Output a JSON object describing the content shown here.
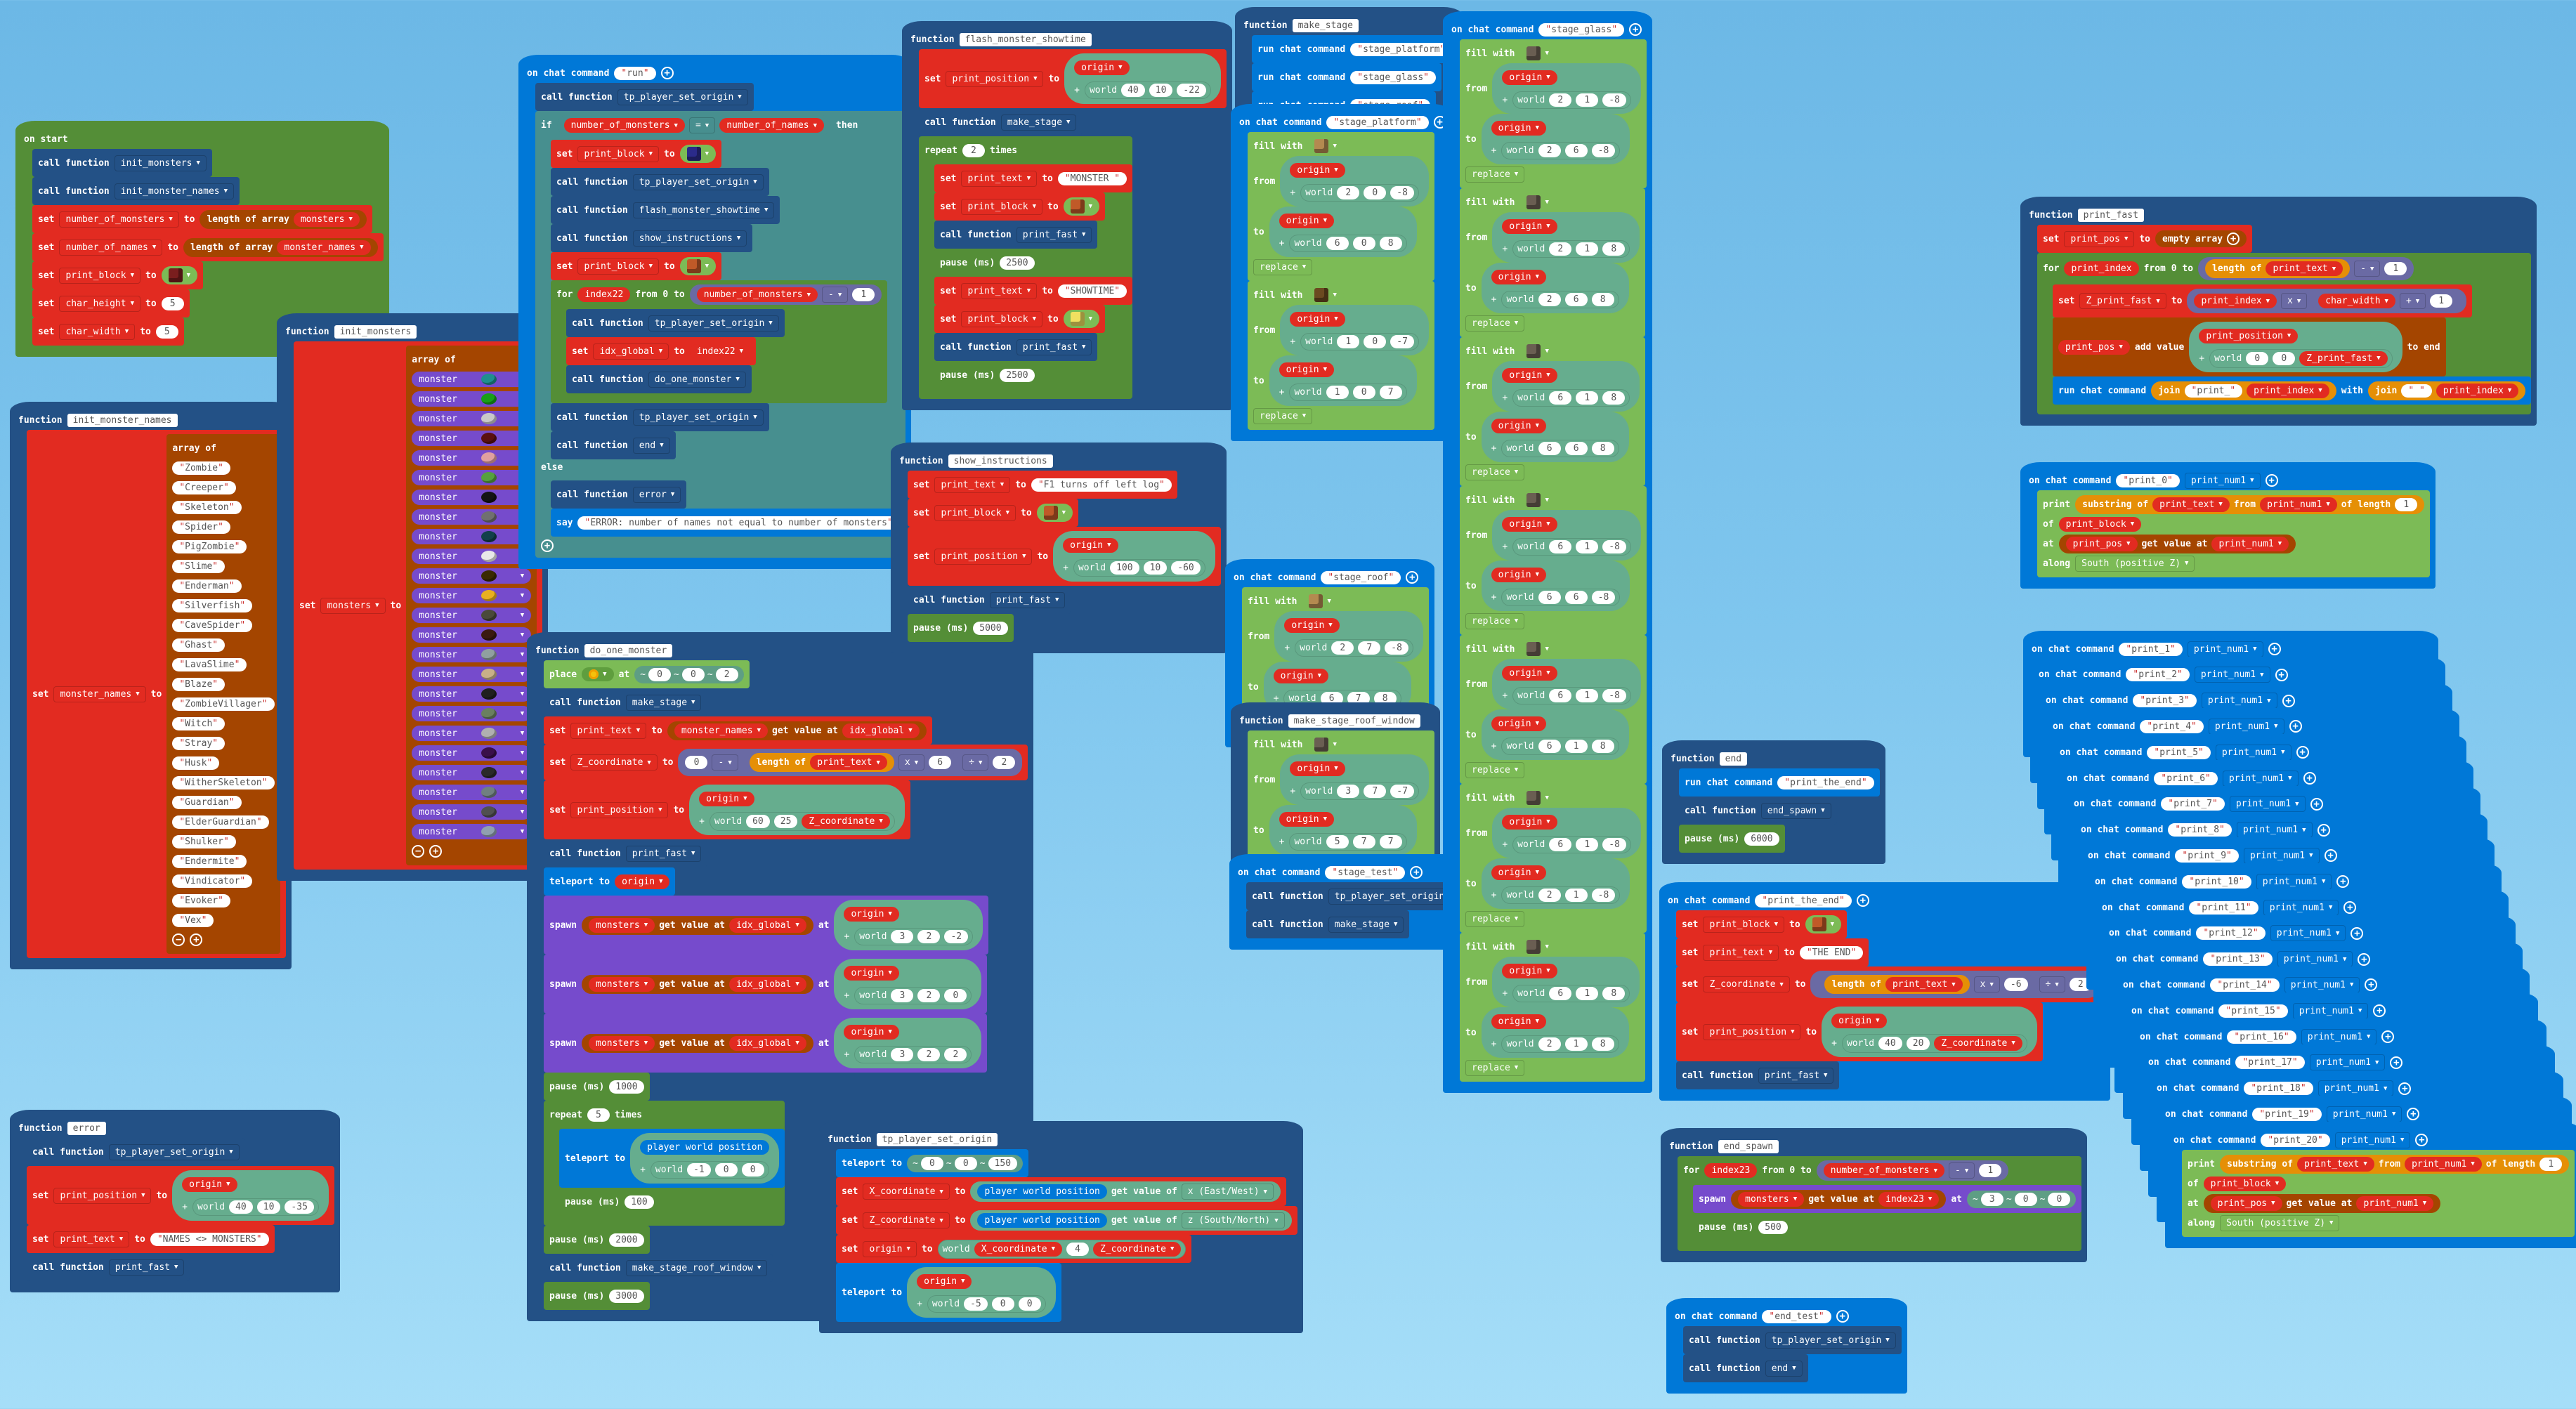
{
  "workspace": {
    "background_top": "#6cb8e6",
    "background_bottom": "#a6def8",
    "colors": {
      "function": "#235186",
      "event": "#0078d7",
      "variables": "#e22b21",
      "arrays": "#a44500",
      "loops": "#548e37",
      "logic": "#478f8f",
      "math": "#6a6aa4",
      "text": "#e58f06",
      "blocks": "#7cbb56",
      "mobs": "#764bcc",
      "positions": "#66ad8e"
    }
  },
  "scripts": {
    "on_start": {
      "header": "on start",
      "calls": [
        "init_monsters",
        "init_monster_names"
      ],
      "call_label": "call function",
      "set_label": "set",
      "to_label": "to",
      "length_of_array": "length of array",
      "sets": [
        {
          "var": "number_of_monsters",
          "array": "monsters"
        },
        {
          "var": "number_of_names",
          "array": "monster_names"
        }
      ],
      "print_block_var": "print_block",
      "print_block_item": "red-block",
      "char_height": {
        "var": "char_height",
        "value": "5"
      },
      "char_width": {
        "var": "char_width",
        "value": "5"
      }
    },
    "init_monster_names": {
      "keyword": "function",
      "name": "init_monster_names",
      "set_var": "monster_names",
      "array_of": "array of",
      "names": [
        "Zombie",
        "Creeper",
        "Skeleton",
        "Spider",
        "PigZombie",
        "Slime",
        "Enderman",
        "Silverfish",
        "CaveSpider",
        "Ghast",
        "LavaSlime",
        "Blaze",
        "ZombieVillager",
        "Witch",
        "Stray",
        "Husk",
        "WitherSkeleton",
        "Guardian",
        "ElderGuardian",
        "Shulker",
        "Endermite",
        "Vindicator",
        "Evoker",
        "Vex"
      ]
    },
    "init_monsters": {
      "keyword": "function",
      "name": "init_monsters",
      "set_var": "monsters",
      "array_of": "array of",
      "item_label": "monster",
      "egg_colors": [
        "#1f8f8f",
        "#18a018",
        "#c8c8c8",
        "#5a1010",
        "#e0a0a0",
        "#56a040",
        "#141414",
        "#707070",
        "#12404a",
        "#e8e8e8",
        "#3a2a00",
        "#e8b020",
        "#4a4a3a",
        "#3a1a10",
        "#90a0a0",
        "#c8b088",
        "#202020",
        "#6a8060",
        "#b0b0b0",
        "#3a104a",
        "#2a2a2a",
        "#708080",
        "#505050",
        "#90a0b0"
      ]
    },
    "error": {
      "keyword": "function",
      "name": "error",
      "call1": "tp_player_set_origin",
      "pos_var": "print_position",
      "origin": "origin",
      "world": "world",
      "offset": [
        "40",
        "10",
        "-35"
      ],
      "text_var": "print_text",
      "text": "NAMES <> MONSTERS",
      "call2": "print_fast"
    },
    "run": {
      "header": "on chat command",
      "command": "run",
      "call_tp": "tp_player_set_origin",
      "if": "if",
      "then": "then",
      "else": "else",
      "cond_left": "number_of_monsters",
      "cond_op": "=",
      "cond_right": "number_of_names",
      "print_block_var": "print_block",
      "call_flash": "flash_monster_showtime",
      "call_instructions": "show_instructions",
      "for": "for",
      "loop_var": "index22",
      "from_to": "from 0 to",
      "limit_var": "number_of_monsters",
      "minus_op": "-",
      "minus_val": "1",
      "do": "do",
      "idx_var": "idx_global",
      "call_one": "do_one_monster",
      "call_end": "end",
      "call_error": "error",
      "say": "say",
      "error_text": "ERROR: number of names not equal to number of monsters"
    },
    "do_one_monster": {
      "keyword": "function",
      "name": "do_one_monster",
      "place": "place",
      "at": "at",
      "place_coords": [
        "0",
        "0",
        "2"
      ],
      "call_stage": "make_stage",
      "text_var": "print_text",
      "names_var": "monster_names",
      "get_value_at": "get value at",
      "idx_var": "idx_global",
      "z_var": "Z_coordinate",
      "z_expr": {
        "zero": "0",
        "minus": "-",
        "length_of": "length of",
        "mul": "x",
        "mul_val": "6",
        "div": "÷",
        "div_val": "2"
      },
      "pos_var": "print_position",
      "pos_offset": [
        "60",
        "25"
      ],
      "call_print": "print_fast",
      "teleport_to": "teleport to",
      "spawn": "spawn",
      "monsters_var": "monsters",
      "spawn_offsets": [
        [
          "3",
          "2",
          "-2"
        ],
        [
          "3",
          "2",
          "0"
        ],
        [
          "3",
          "2",
          "2"
        ]
      ],
      "pause1": "1000",
      "repeat": "repeat",
      "repeat_times": "5",
      "times": "times",
      "player_world_position": "player world position",
      "tp_offset": [
        "-1",
        "0",
        "0"
      ],
      "pause_inner": "100",
      "pause2": "2000",
      "call_roof": "make_stage_roof_window",
      "pause3": "3000",
      "pause_label": "pause (ms)"
    },
    "tp_player_set_origin": {
      "keyword": "function",
      "name": "tp_player_set_origin",
      "tp_coords": [
        "0",
        "0",
        "150"
      ],
      "x_var": "X_coordinate",
      "z_var": "Z_coordinate",
      "get_value_of": "get value of",
      "x_axis": "x (East/West)",
      "z_axis": "z (South/North)",
      "origin_var": "origin",
      "origin_y": "4",
      "tp_offset": [
        "-5",
        "0",
        "0"
      ]
    },
    "flash_monster_showtime": {
      "keyword": "function",
      "name": "flash_monster_showtime",
      "pos_offset": [
        "40",
        "10",
        "-22"
      ],
      "call_stage": "make_stage",
      "repeat_times": "2",
      "text1": "MONSTER ",
      "text2": "SHOWTIME",
      "pause": "2500",
      "call_print": "print_fast"
    },
    "show_instructions": {
      "keyword": "function",
      "name": "show_instructions",
      "text": "F1 turns off left log",
      "pos_offset": [
        "100",
        "10",
        "-60"
      ],
      "call_print": "print_fast",
      "pause": "5000"
    },
    "make_stage": {
      "keyword": "function",
      "name": "make_stage",
      "run_chat_command": "run chat command",
      "commands": [
        "stage_platform",
        "stage_glass",
        "stage_roof"
      ]
    },
    "stage_platform": {
      "command": "stage_platform",
      "fills": [
        {
          "block": "planks",
          "from": [
            "2",
            "0",
            "-8"
          ],
          "to": [
            "6",
            "0",
            "8"
          ],
          "mode": "replace"
        },
        {
          "block": "torch",
          "from": [
            "1",
            "0",
            "-7"
          ],
          "to": [
            "1",
            "0",
            "7"
          ],
          "mode": "replace"
        }
      ]
    },
    "stage_roof": {
      "command": "stage_roof",
      "fills": [
        {
          "block": "planks",
          "from": [
            "2",
            "7",
            "-8"
          ],
          "to": [
            "6",
            "7",
            "8"
          ],
          "mode": "replace"
        }
      ]
    },
    "make_stage_roof_window": {
      "keyword": "function",
      "name": "make_stage_roof_window",
      "fills": [
        {
          "block": "glass",
          "from": [
            "3",
            "7",
            "-7"
          ],
          "to": [
            "5",
            "7",
            "7"
          ],
          "mode": "replace"
        }
      ]
    },
    "stage_test": {
      "command": "stage_test",
      "calls": [
        "tp_player_set_origin",
        "make_stage"
      ]
    },
    "stage_glass": {
      "command": "stage_glass",
      "fills": [
        {
          "block": "glass",
          "from": [
            "2",
            "1",
            "-8"
          ],
          "to": [
            "2",
            "6",
            "-8"
          ],
          "mode": "replace"
        },
        {
          "block": "glass",
          "from": [
            "2",
            "1",
            "8"
          ],
          "to": [
            "2",
            "6",
            "8"
          ],
          "mode": "replace"
        },
        {
          "block": "glass",
          "from": [
            "6",
            "1",
            "8"
          ],
          "to": [
            "6",
            "6",
            "8"
          ],
          "mode": "replace"
        },
        {
          "block": "glass",
          "from": [
            "6",
            "1",
            "-8"
          ],
          "to": [
            "6",
            "6",
            "-8"
          ],
          "mode": "replace"
        },
        {
          "block": "glass",
          "from": [
            "6",
            "1",
            "-8"
          ],
          "to": [
            "6",
            "1",
            "8"
          ],
          "mode": "replace"
        },
        {
          "block": "glass",
          "from": [
            "6",
            "1",
            "-8"
          ],
          "to": [
            "2",
            "1",
            "-8"
          ],
          "mode": "replace"
        },
        {
          "block": "glass",
          "from": [
            "6",
            "1",
            "8"
          ],
          "to": [
            "2",
            "1",
            "8"
          ],
          "mode": "replace"
        }
      ]
    },
    "end": {
      "keyword": "function",
      "name": "end",
      "run_command": "print_the_end",
      "call": "end_spawn",
      "pause": "6000"
    },
    "print_the_end": {
      "command": "print_the_end",
      "text": "THE END",
      "z_expr": {
        "length_of": "length of",
        "mul": "x",
        "mul_val": "-6",
        "div": "÷",
        "div_val": "2"
      },
      "pos_offset": [
        "40",
        "20"
      ],
      "call_print": "print_fast"
    },
    "end_spawn": {
      "keyword": "function",
      "name": "end_spawn",
      "loop_var": "index23",
      "limit_var": "number_of_monsters",
      "minus_val": "1",
      "spawn_coords": [
        "3",
        "0",
        "0"
      ],
      "pause": "500"
    },
    "end_test": {
      "command": "end_test",
      "calls": [
        "tp_player_set_origin",
        "end"
      ]
    },
    "print_fast": {
      "keyword": "function",
      "name": "print_fast",
      "pos_var": "print_pos",
      "empty_array": "empty array",
      "loop_var": "print_index",
      "length_of": "length of",
      "text_var": "print_text",
      "minus_val": "1",
      "z_var": "Z_print_fast",
      "char_width": "char_width",
      "plus_val": "1",
      "add_value": "add value",
      "to_end": "to end",
      "position_var": "print_position",
      "world_xy": [
        "0",
        "0"
      ],
      "join": "join",
      "with": "with",
      "prefix": "print_",
      "space": " "
    },
    "print_handlers": {
      "param": "print_num1",
      "print": "print",
      "substring_of": "substring of",
      "from": "from",
      "of_length": "of length",
      "length_val": "1",
      "of": "of",
      "block_var": "print_block",
      "at": "at",
      "array_var": "print_pos",
      "along": "along",
      "direction": "South (positive Z)",
      "commands": [
        "print_0",
        "print_1",
        "print_2",
        "print_3",
        "print_4",
        "print_5",
        "print_6",
        "print_7",
        "print_8",
        "print_9",
        "print_10",
        "print_11",
        "print_12",
        "print_13",
        "print_14",
        "print_15",
        "print_16",
        "print_17",
        "print_18",
        "print_19",
        "print_20"
      ]
    }
  }
}
